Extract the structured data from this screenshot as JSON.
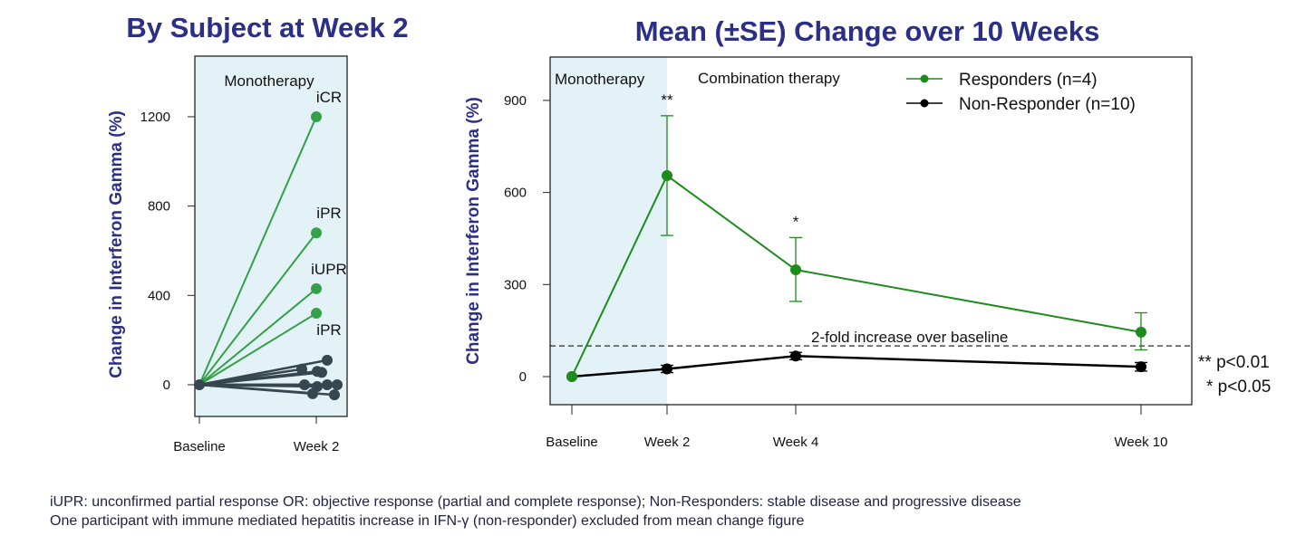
{
  "colors": {
    "title": "#2b2f86",
    "responder_left": "#34a04a",
    "responder_right": "#1d8c1d",
    "non_responder_left": "#37474f",
    "non_responder_right": "#000000",
    "shade": "#e3f2f6"
  },
  "chart_data": [
    {
      "type": "line",
      "title": "By Subject at Week 2",
      "ylabel": "Change in Interferon Gamma (%)",
      "xlabel": "",
      "categories": [
        "Baseline",
        "Week 2"
      ],
      "ylim": [
        -120,
        1380
      ],
      "yticks": [
        0,
        400,
        800,
        1200
      ],
      "grid": false,
      "region_label": "Monotherapy",
      "responders": [
        {
          "label": "iCR",
          "values": [
            0,
            1200
          ]
        },
        {
          "label": "iPR",
          "values": [
            0,
            680
          ]
        },
        {
          "label": "iUPR",
          "values": [
            0,
            430
          ]
        },
        {
          "label": "iPR",
          "values": [
            0,
            320
          ]
        }
      ],
      "non_responders": [
        {
          "values": [
            0,
            110
          ]
        },
        {
          "values": [
            0,
            70
          ]
        },
        {
          "values": [
            0,
            60
          ]
        },
        {
          "values": [
            0,
            55
          ]
        },
        {
          "values": [
            0,
            0
          ]
        },
        {
          "values": [
            0,
            -8
          ]
        },
        {
          "values": [
            0,
            0
          ]
        },
        {
          "values": [
            0,
            0
          ]
        },
        {
          "values": [
            0,
            -40
          ]
        },
        {
          "values": [
            0,
            -45
          ]
        }
      ]
    },
    {
      "type": "line",
      "title": "Mean (±SE) Change over 10 Weeks",
      "ylabel": "Change in Interferon Gamma (%)",
      "xlabel": "",
      "categories": [
        "Baseline",
        "Week 2",
        "Week 4",
        "Week 10"
      ],
      "ylim": [
        -90,
        1000
      ],
      "yticks": [
        0,
        300,
        600,
        900
      ],
      "grid": false,
      "legend": "top-right",
      "region_labels": [
        "Monotherapy",
        "Combination therapy"
      ],
      "reference_line": {
        "y": 100,
        "label": "2-fold increase over baseline",
        "style": "dashed"
      },
      "series": [
        {
          "name": "Responders (n=4)",
          "values": [
            0,
            655,
            348,
            145
          ],
          "se_low": [
            null,
            460,
            245,
            87
          ],
          "se_high": [
            null,
            850,
            453,
            208
          ],
          "significance": [
            "",
            "**",
            "*",
            ""
          ]
        },
        {
          "name": "Non-Responder (n=10)",
          "values": [
            0,
            25,
            67,
            32
          ],
          "se_low": [
            null,
            13,
            55,
            18
          ],
          "se_high": [
            null,
            37,
            79,
            46
          ],
          "significance": [
            "",
            "",
            "",
            ""
          ]
        }
      ],
      "significance_key": [
        "** p<0.01",
        "* p<0.05"
      ]
    }
  ],
  "footnotes": [
    "iUPR: unconfirmed partial response OR: objective response (partial and complete response); Non-Responders: stable disease and progressive disease",
    "One participant with immune mediated hepatitis increase in IFN-γ (non-responder) excluded from mean change figure"
  ]
}
